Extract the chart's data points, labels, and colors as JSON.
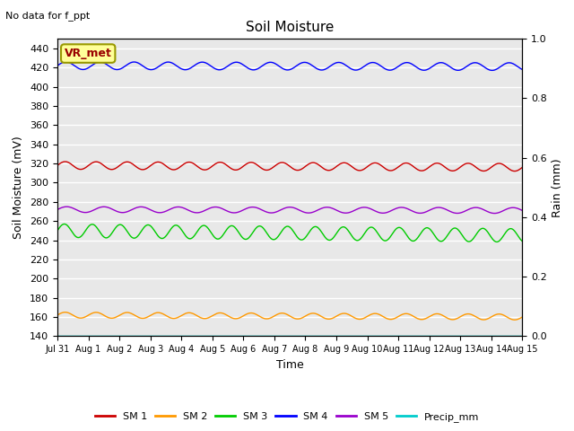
{
  "title": "Soil Moisture",
  "top_left_text": "No data for f_ppt",
  "xlabel": "Time",
  "ylabel_left": "Soil Moisture (mV)",
  "ylabel_right": "Rain (mm)",
  "ylim_left": [
    140,
    450
  ],
  "ylim_right": [
    0.0,
    1.0
  ],
  "yticks_left": [
    140,
    160,
    180,
    200,
    220,
    240,
    260,
    280,
    300,
    320,
    340,
    360,
    380,
    400,
    420,
    440
  ],
  "yticks_right": [
    0.0,
    0.2,
    0.4,
    0.6,
    0.8,
    1.0
  ],
  "xtick_labels": [
    "Jul 31",
    "Aug 1",
    "Aug 2",
    "Aug 3",
    "Aug 4",
    "Aug 5",
    "Aug 6",
    "Aug 7",
    "Aug 8",
    "Aug 9",
    "Aug 10",
    "Aug 11",
    "Aug 12",
    "Aug 13",
    "Aug 14",
    "Aug 15"
  ],
  "series": {
    "SM1": {
      "color": "#cc0000",
      "base": 318,
      "amplitude": 4,
      "period": 1.0,
      "drift": -2
    },
    "SM2": {
      "color": "#ff9900",
      "base": 162,
      "amplitude": 3,
      "period": 1.0,
      "drift": -2
    },
    "SM3": {
      "color": "#00cc00",
      "base": 250,
      "amplitude": 7,
      "period": 0.9,
      "drift": -5
    },
    "SM4": {
      "color": "#0000ff",
      "base": 422,
      "amplitude": 4,
      "period": 1.1,
      "drift": -1
    },
    "SM5": {
      "color": "#9900cc",
      "base": 272,
      "amplitude": 3,
      "period": 1.2,
      "drift": -1
    },
    "Precip_mm": {
      "color": "#00cccc",
      "base": 140,
      "amplitude": 0,
      "period": 1.0,
      "drift": 0
    }
  },
  "legend_labels": [
    "SM 1",
    "SM 2",
    "SM 3",
    "SM 4",
    "SM 5",
    "Precip_mm"
  ],
  "legend_colors": [
    "#cc0000",
    "#ff9900",
    "#00cc00",
    "#0000ff",
    "#9900cc",
    "#00cccc"
  ],
  "vr_met_box_facecolor": "#ffff99",
  "vr_met_text_color": "#990000",
  "vr_met_border_color": "#999900",
  "bg_color": "#e8e8e8",
  "grid_color": "#ffffff"
}
